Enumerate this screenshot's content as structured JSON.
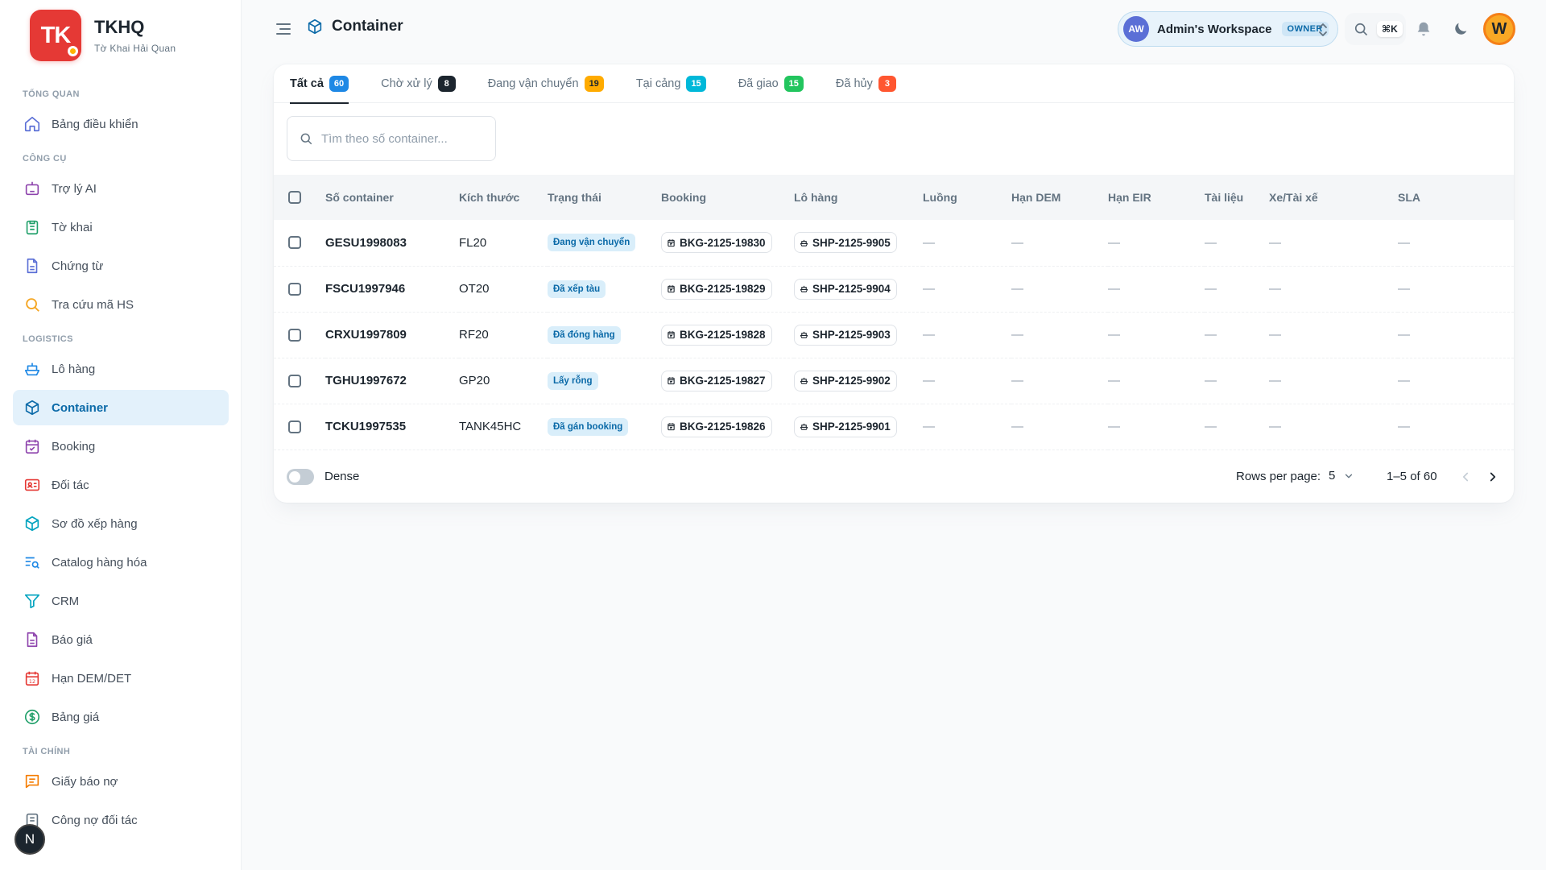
{
  "brand": {
    "short": "TK",
    "name": "TKHQ",
    "subtitle": "Tờ Khai Hải Quan"
  },
  "sidebar": {
    "sections": [
      {
        "title": "TỔNG QUAN",
        "items": [
          {
            "label": "Bảng điều khiển",
            "icon": "home-icon"
          }
        ]
      },
      {
        "title": "CÔNG CỤ",
        "items": [
          {
            "label": "Trợ lý AI",
            "icon": "robot-icon"
          },
          {
            "label": "Tờ khai",
            "icon": "clipboard-icon"
          },
          {
            "label": "Chứng từ",
            "icon": "document-icon"
          },
          {
            "label": "Tra cứu mã HS",
            "icon": "search-icon"
          }
        ]
      },
      {
        "title": "LOGISTICS",
        "items": [
          {
            "label": "Lô hàng",
            "icon": "ship-icon"
          },
          {
            "label": "Container",
            "icon": "cube-icon",
            "active": true
          },
          {
            "label": "Booking",
            "icon": "calendar-check-icon"
          },
          {
            "label": "Đối tác",
            "icon": "contact-card-icon"
          },
          {
            "label": "Sơ đồ xếp hàng",
            "icon": "cube-icon"
          },
          {
            "label": "Catalog hàng hóa",
            "icon": "list-search-icon"
          },
          {
            "label": "CRM",
            "icon": "funnel-icon"
          },
          {
            "label": "Báo giá",
            "icon": "document-icon"
          },
          {
            "label": "Hạn DEM/DET",
            "icon": "calendar-12-icon"
          },
          {
            "label": "Bảng giá",
            "icon": "dollar-circle-icon"
          }
        ]
      },
      {
        "title": "TÀI CHÍNH",
        "items": [
          {
            "label": "Giấy báo nợ",
            "icon": "message-lines-icon"
          },
          {
            "label": "Công nợ đối tác",
            "icon": "ledger-icon"
          }
        ]
      }
    ],
    "fab_label": "N"
  },
  "header": {
    "page_title": "Container",
    "workspace": {
      "initials": "AW",
      "name": "Admin's Workspace",
      "role": "OWNER"
    },
    "shortcut": "⌘K",
    "user_initial": "W"
  },
  "tabs": [
    {
      "label": "Tất cả",
      "count": "60",
      "color": "#1e88e5",
      "text_color": "#ffffff",
      "active": true
    },
    {
      "label": "Chờ xử lý",
      "count": "8",
      "color": "#1c252e",
      "text_color": "#ffffff"
    },
    {
      "label": "Đang vận chuyển",
      "count": "19",
      "color": "#ffab00",
      "text_color": "#1c252e"
    },
    {
      "label": "Tại cảng",
      "count": "15",
      "color": "#00b8d9",
      "text_color": "#ffffff"
    },
    {
      "label": "Đã giao",
      "count": "15",
      "color": "#22c55e",
      "text_color": "#ffffff"
    },
    {
      "label": "Đã hủy",
      "count": "3",
      "color": "#ff5630",
      "text_color": "#ffffff"
    }
  ],
  "search": {
    "placeholder": "Tìm theo số container...",
    "value": ""
  },
  "table": {
    "columns": [
      "Số container",
      "Kích thước",
      "Trạng thái",
      "Booking",
      "Lô hàng",
      "Luồng",
      "Hạn DEM",
      "Hạn EIR",
      "Tài liệu",
      "Xe/Tài xế",
      "SLA"
    ],
    "rows": [
      {
        "container": "GESU1998083",
        "size": "FL20",
        "status": "Đang vận chuyển",
        "booking": "BKG-2125-19830",
        "shipment": "SHP-2125-9905",
        "lane": "—",
        "dem": "—",
        "eir": "—",
        "docs": "—",
        "driver": "—",
        "sla": "—"
      },
      {
        "container": "FSCU1997946",
        "size": "OT20",
        "status": "Đã xếp tàu",
        "booking": "BKG-2125-19829",
        "shipment": "SHP-2125-9904",
        "lane": "—",
        "dem": "—",
        "eir": "—",
        "docs": "—",
        "driver": "—",
        "sla": "—"
      },
      {
        "container": "CRXU1997809",
        "size": "RF20",
        "status": "Đã đóng hàng",
        "booking": "BKG-2125-19828",
        "shipment": "SHP-2125-9903",
        "lane": "—",
        "dem": "—",
        "eir": "—",
        "docs": "—",
        "driver": "—",
        "sla": "—"
      },
      {
        "container": "TGHU1997672",
        "size": "GP20",
        "status": "Lấy rỗng",
        "booking": "BKG-2125-19827",
        "shipment": "SHP-2125-9902",
        "lane": "—",
        "dem": "—",
        "eir": "—",
        "docs": "—",
        "driver": "—",
        "sla": "—"
      },
      {
        "container": "TCKU1997535",
        "size": "TANK45HC",
        "status": "Đã gán booking",
        "booking": "BKG-2125-19826",
        "shipment": "SHP-2125-9901",
        "lane": "—",
        "dem": "—",
        "eir": "—",
        "docs": "—",
        "driver": "—",
        "sla": "—"
      }
    ]
  },
  "footer": {
    "dense_label": "Dense",
    "rows_per_page_label": "Rows per page:",
    "rows_per_page": "5",
    "range": "1–5 of 60"
  }
}
